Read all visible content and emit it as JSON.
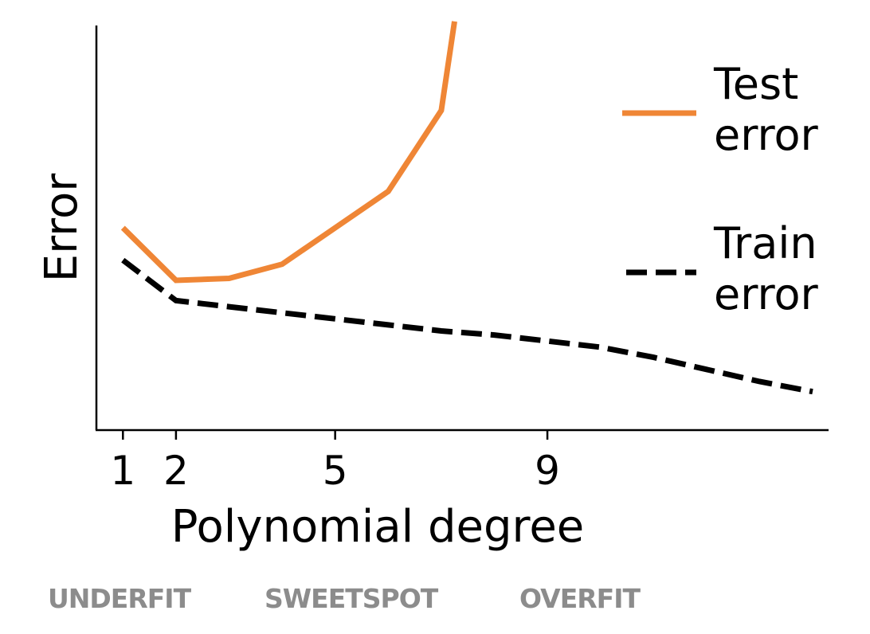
{
  "chart_data": {
    "type": "line",
    "xlabel": "Polynomial degree",
    "ylabel": "Error",
    "x_ticks": [
      1,
      2,
      5,
      9
    ],
    "xlim": [
      0.5,
      14.3
    ],
    "ylim": [
      0,
      10
    ],
    "grid": false,
    "legend_position": "top-right",
    "series": [
      {
        "name": "Test error",
        "color": "#ef8636",
        "style": "solid",
        "x": [
          1,
          2,
          3,
          4,
          5,
          6,
          7,
          7.25
        ],
        "y": [
          5.0,
          3.7,
          3.75,
          4.1,
          5.0,
          5.9,
          7.9,
          10.1
        ]
      },
      {
        "name": "Train error",
        "color": "#000000",
        "style": "dashed",
        "x": [
          1,
          2,
          3,
          4,
          5,
          6,
          7,
          8,
          9,
          10,
          11,
          12,
          13,
          14
        ],
        "y": [
          4.2,
          3.2,
          3.05,
          2.9,
          2.75,
          2.6,
          2.45,
          2.35,
          2.2,
          2.05,
          1.8,
          1.5,
          1.2,
          0.95
        ]
      }
    ]
  },
  "legend": {
    "test_line1": "Test",
    "test_line2": "error",
    "train_line1": "Train",
    "train_line2": "error"
  },
  "regimes": {
    "underfit": "UNDERFIT",
    "sweetspot": "SWEETSPOT",
    "overfit": "OVERFIT"
  }
}
